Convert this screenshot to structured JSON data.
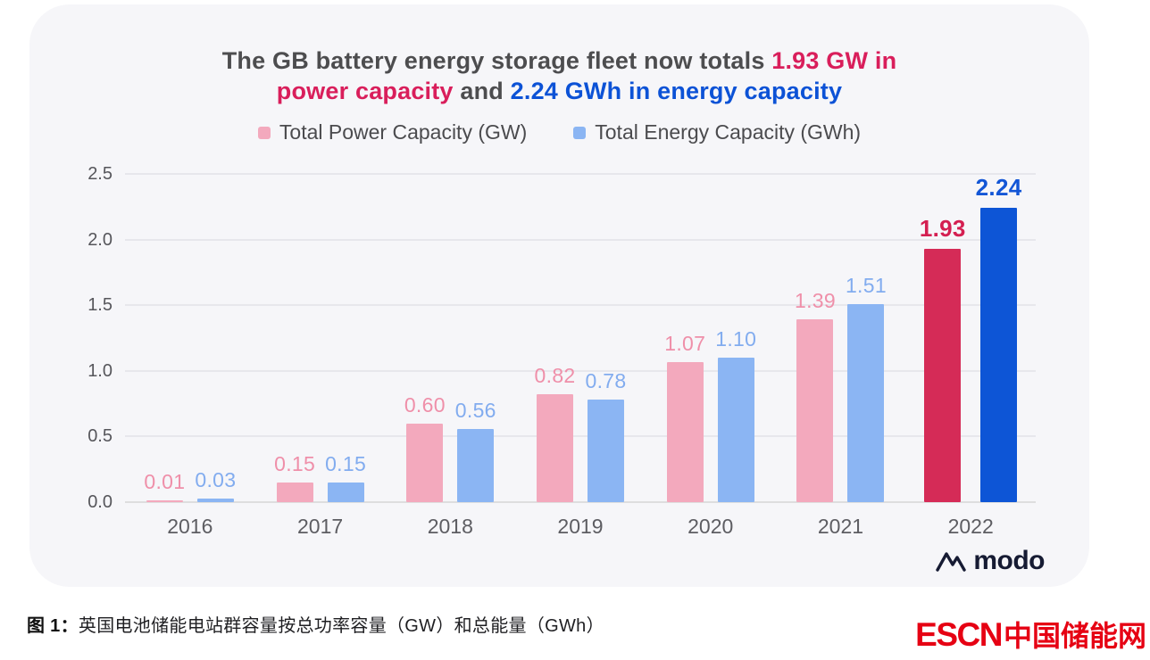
{
  "card": {
    "title": {
      "l1a": "The GB battery energy storage fleet now totals",
      "l1b": "1.93 GW in",
      "l2a": "power capacity",
      "l2b": "and",
      "l2c": "2.24 GWh in energy capacity"
    },
    "legend": {
      "power": "Total Power Capacity (GW)",
      "energy": "Total Energy Capacity (GWh)"
    },
    "modo_logo": "modo"
  },
  "caption": {
    "prefix": "图 1：",
    "text": "英国电池储能电站群容量按总功率容量（GW）和总能量（GWh）"
  },
  "footer": {
    "logo_en": "ESCN",
    "logo_cn": "中国储能网"
  },
  "chart_data": {
    "type": "bar",
    "title": "The GB battery energy storage fleet now totals 1.93 GW in power capacity and 2.24 GWh in energy capacity",
    "categories": [
      "2016",
      "2017",
      "2018",
      "2019",
      "2020",
      "2021",
      "2022"
    ],
    "series": [
      {
        "name": "Total Power Capacity (GW)",
        "values": [
          0.01,
          0.15,
          0.6,
          0.82,
          1.07,
          1.39,
          1.93
        ]
      },
      {
        "name": "Total Energy Capacity (GWh)",
        "values": [
          0.03,
          0.15,
          0.56,
          0.78,
          1.1,
          1.51,
          2.24
        ]
      }
    ],
    "yticks": [
      "0.0",
      "0.5",
      "1.0",
      "1.5",
      "2.0",
      "2.5"
    ],
    "ylim": [
      0,
      2.5
    ],
    "grid": "horizontal",
    "legend_position": "top",
    "highlight_category": "2022",
    "colors": {
      "power_light": "#f3a9bd",
      "energy_light": "#8bb5f3",
      "power_highlight": "#d52b57",
      "energy_highlight": "#0d55d6",
      "power_label_light": "#ef8fa9",
      "energy_label_light": "#82acef",
      "power_label_highlight": "#d41f51",
      "energy_label_highlight": "#1356d6",
      "title_red": "#d91e5b",
      "title_blue": "#0c52d6",
      "escn_red": "#e60113"
    }
  }
}
